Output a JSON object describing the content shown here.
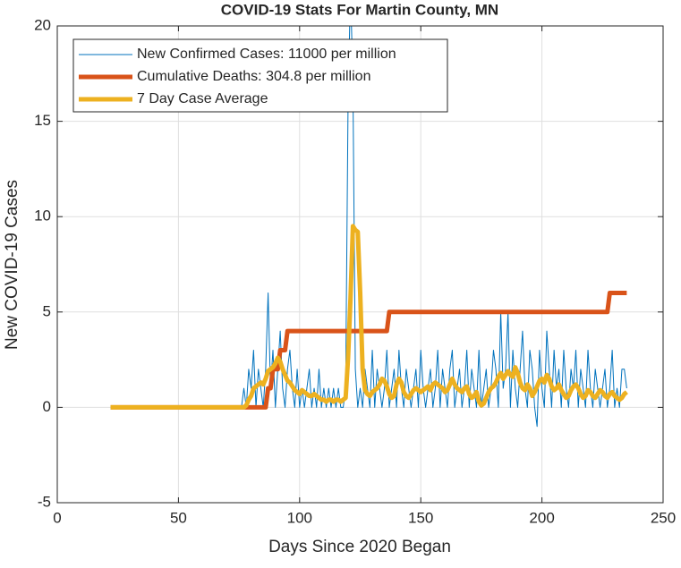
{
  "chart_data": {
    "type": "line",
    "title": "COVID-19 Stats For Martin County, MN",
    "xlabel": "Days Since 2020 Began",
    "ylabel": "New COVID-19 Cases",
    "xlim": [
      0,
      250
    ],
    "xticks": [
      0,
      50,
      100,
      150,
      200,
      250
    ],
    "ylim": [
      -5,
      20
    ],
    "yticks": [
      -5,
      0,
      5,
      10,
      15,
      20
    ],
    "grid": true,
    "legend": "upper left",
    "x": [
      22,
      76,
      77,
      78,
      79,
      80,
      81,
      82,
      83,
      84,
      85,
      86,
      87,
      88,
      89,
      90,
      91,
      92,
      93,
      94,
      95,
      96,
      97,
      98,
      99,
      100,
      101,
      102,
      103,
      104,
      105,
      106,
      107,
      108,
      109,
      110,
      111,
      112,
      113,
      114,
      115,
      116,
      117,
      118,
      119,
      120,
      121,
      122,
      123,
      124,
      125,
      126,
      127,
      128,
      129,
      130,
      131,
      132,
      133,
      134,
      135,
      136,
      137,
      138,
      139,
      140,
      141,
      142,
      143,
      144,
      145,
      146,
      147,
      148,
      149,
      150,
      151,
      152,
      153,
      154,
      155,
      156,
      157,
      158,
      159,
      160,
      161,
      162,
      163,
      164,
      165,
      166,
      167,
      168,
      169,
      170,
      171,
      172,
      173,
      174,
      175,
      176,
      177,
      178,
      179,
      180,
      181,
      182,
      183,
      184,
      185,
      186,
      187,
      188,
      189,
      190,
      191,
      192,
      193,
      194,
      195,
      196,
      197,
      198,
      199,
      200,
      201,
      202,
      203,
      204,
      205,
      206,
      207,
      208,
      209,
      210,
      211,
      212,
      213,
      214,
      215,
      216,
      217,
      218,
      219,
      220,
      221,
      222,
      223,
      224,
      225,
      226,
      227,
      228,
      229,
      230,
      231,
      232,
      233,
      234,
      235
    ],
    "series": [
      {
        "name": "New Confirmed Cases: 11000 per million",
        "color": "#0072BD",
        "width": 1,
        "values": [
          0,
          0,
          1,
          0,
          2,
          1,
          3,
          0,
          2,
          1,
          0,
          2,
          6,
          1,
          3,
          0,
          2,
          4,
          1,
          0,
          2,
          3,
          1,
          0,
          2,
          0,
          1,
          0,
          1,
          2,
          0,
          1,
          0,
          2,
          0,
          1,
          0,
          1,
          0,
          1,
          0,
          1,
          0,
          0,
          1,
          16,
          22,
          17,
          2,
          0,
          1,
          0,
          2,
          1,
          0,
          3,
          0,
          2,
          1,
          0,
          1,
          3,
          0,
          1,
          2,
          0,
          3,
          1,
          0,
          2,
          1,
          0,
          1,
          2,
          0,
          3,
          1,
          0,
          1,
          2,
          0,
          1,
          3,
          0,
          2,
          1,
          0,
          2,
          3,
          0,
          1,
          2,
          0,
          1,
          3,
          0,
          2,
          1,
          0,
          3,
          0,
          1,
          2,
          0,
          1,
          3,
          2,
          0,
          5,
          1,
          2,
          5,
          0,
          3,
          1,
          0,
          2,
          4,
          1,
          0,
          3,
          2,
          0,
          -1,
          3,
          1,
          0,
          4,
          2,
          0,
          3,
          1,
          2,
          0,
          3,
          1,
          0,
          2,
          1,
          3,
          0,
          2,
          1,
          0,
          3,
          1,
          0,
          2,
          1,
          0,
          1,
          2,
          0,
          1,
          3,
          0,
          1,
          0,
          2,
          2,
          1
        ]
      },
      {
        "name": "Cumulative Deaths: 304.8 per million",
        "color": "#D95319",
        "width": 5,
        "values": [
          0,
          0,
          0,
          0,
          0,
          0,
          0,
          0,
          0,
          0,
          0,
          0,
          1,
          1,
          2,
          2,
          2,
          3,
          3,
          3,
          4,
          4,
          4,
          4,
          4,
          4,
          4,
          4,
          4,
          4,
          4,
          4,
          4,
          4,
          4,
          4,
          4,
          4,
          4,
          4,
          4,
          4,
          4,
          4,
          4,
          4,
          4,
          4,
          4,
          4,
          4,
          4,
          4,
          4,
          4,
          4,
          4,
          4,
          4,
          4,
          4,
          4,
          5,
          5,
          5,
          5,
          5,
          5,
          5,
          5,
          5,
          5,
          5,
          5,
          5,
          5,
          5,
          5,
          5,
          5,
          5,
          5,
          5,
          5,
          5,
          5,
          5,
          5,
          5,
          5,
          5,
          5,
          5,
          5,
          5,
          5,
          5,
          5,
          5,
          5,
          5,
          5,
          5,
          5,
          5,
          5,
          5,
          5,
          5,
          5,
          5,
          5,
          5,
          5,
          5,
          5,
          5,
          5,
          5,
          5,
          5,
          5,
          5,
          5,
          5,
          5,
          5,
          5,
          5,
          5,
          5,
          5,
          5,
          5,
          5,
          5,
          5,
          5,
          5,
          5,
          5,
          5,
          5,
          5,
          5,
          5,
          5,
          5,
          5,
          5,
          5,
          5,
          5,
          6,
          6,
          6,
          6,
          6,
          6,
          6,
          6
        ]
      },
      {
        "name": "7 Day Case Average",
        "color": "#EDB120",
        "width": 5,
        "values": [
          0,
          0,
          0,
          0.1,
          0.4,
          0.6,
          1,
          1.1,
          1.2,
          1.3,
          1.2,
          1.5,
          1.9,
          2,
          2.1,
          2.3,
          2.6,
          2.4,
          2,
          1.7,
          1.4,
          1.3,
          1.1,
          0.9,
          0.8,
          0.7,
          0.9,
          0.8,
          0.7,
          0.6,
          0.6,
          0.7,
          0.6,
          0.5,
          0.4,
          0.4,
          0.3,
          0.4,
          0.4,
          0.3,
          0.4,
          0.4,
          0.3,
          0.4,
          0.5,
          2.6,
          5.7,
          9.5,
          9.3,
          9.2,
          6,
          2,
          0.9,
          0.7,
          0.6,
          0.8,
          0.9,
          1,
          1.2,
          1.5,
          1.4,
          1.1,
          0.7,
          0.5,
          0.6,
          1.2,
          1.5,
          1.3,
          0.8,
          0.6,
          0.5,
          0.7,
          0.9,
          1,
          0.9,
          0.8,
          0.9,
          1,
          1.1,
          0.9,
          1.2,
          1.3,
          1.2,
          1.1,
          1,
          0.8,
          0.9,
          1.2,
          1.5,
          1.2,
          1,
          0.9,
          0.8,
          1,
          1.1,
          0.7,
          0.5,
          0.6,
          0.8,
          0.3,
          0.1,
          0.2,
          0.5,
          0.8,
          1,
          1.1,
          1.3,
          1.6,
          1.8,
          1.5,
          1.7,
          1.9,
          1.7,
          1.6,
          2.1,
          1.8,
          1.3,
          1,
          0.9,
          1.2,
          1,
          0.6,
          0.8,
          1.1,
          1.4,
          1.5,
          1.3,
          1.7,
          1.5,
          1.1,
          0.9,
          1,
          1.2,
          0.9,
          0.7,
          0.5,
          0.6,
          0.9,
          1.1,
          1.2,
          1,
          0.7,
          0.5,
          0.6,
          0.9,
          0.8,
          0.6,
          0.5,
          0.7,
          0.9,
          0.8,
          0.6,
          0.5,
          0.7,
          0.8,
          0.6,
          0.5,
          0.4,
          0.5,
          0.7,
          0.8
        ]
      }
    ]
  }
}
